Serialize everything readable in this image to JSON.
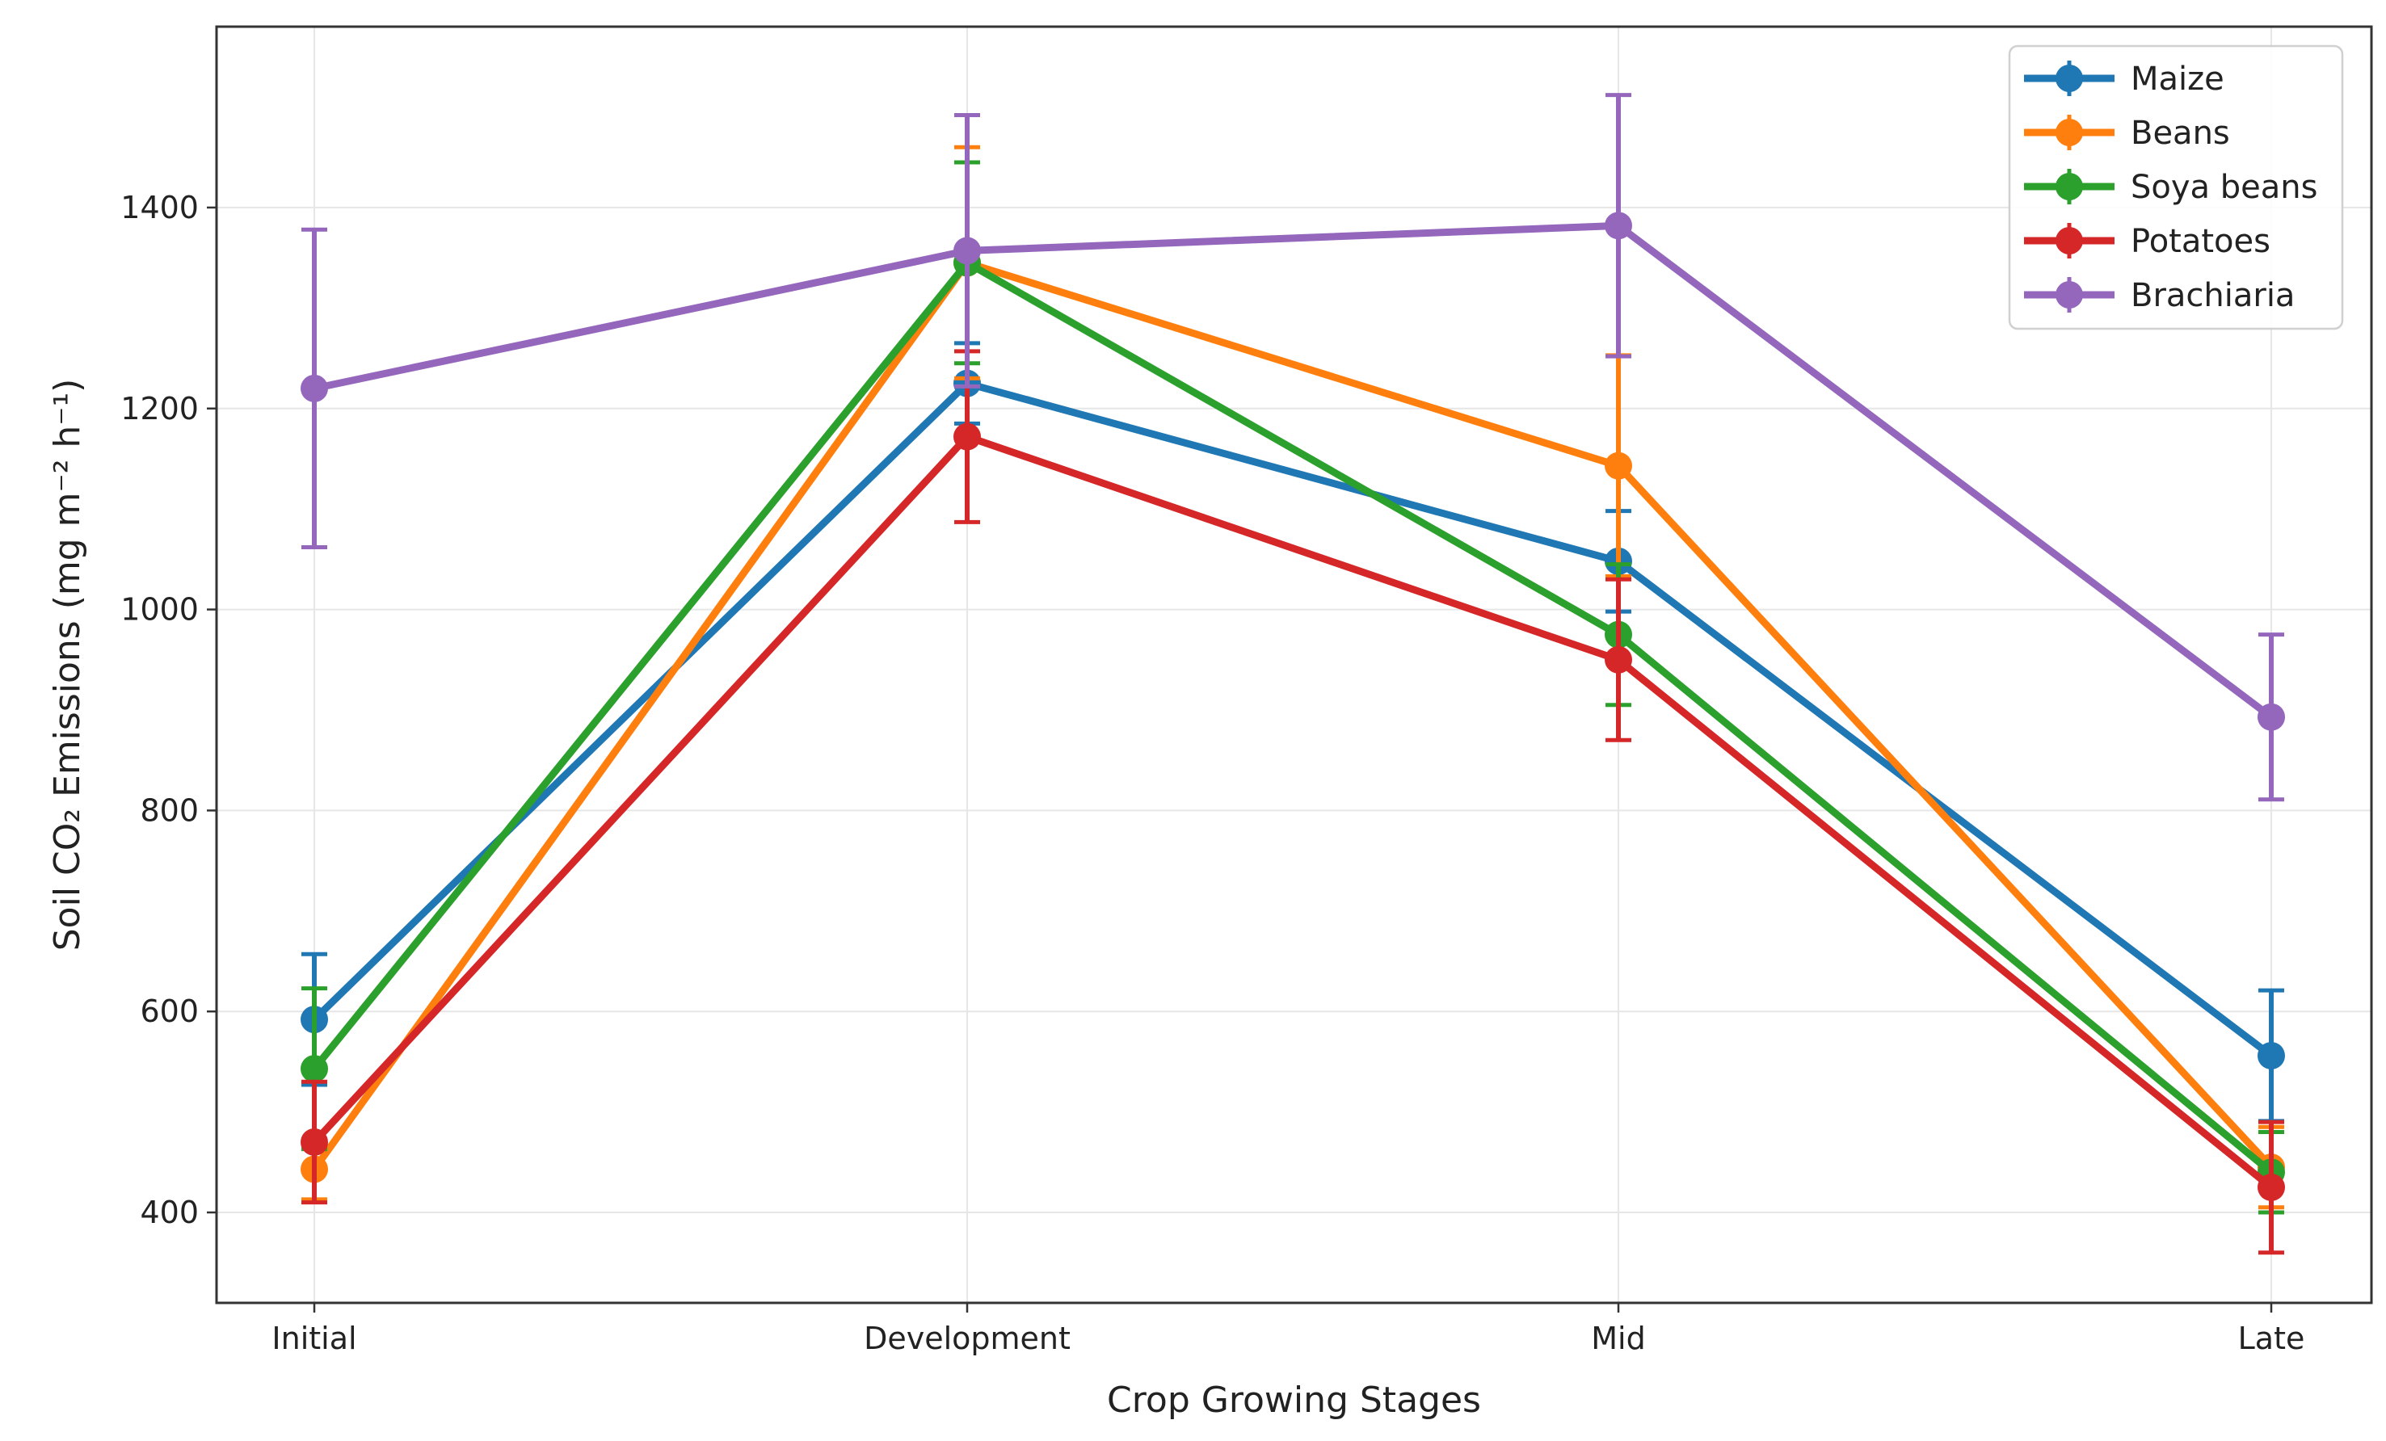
{
  "chart_data": {
    "type": "line",
    "title": "",
    "xlabel": "Crop Growing Stages",
    "ylabel": "Soil CO₂ Emissions (mg m⁻² h⁻¹)",
    "categories": [
      "Initial",
      "Development",
      "Mid",
      "Late"
    ],
    "ylim": [
      310,
      1580
    ],
    "yticks": [
      400,
      600,
      800,
      1000,
      1200,
      1400
    ],
    "grid": true,
    "legend_position": "top-right",
    "series": [
      {
        "name": "Maize",
        "color": "#1f77b4",
        "values": [
          592,
          1225,
          1048,
          556
        ],
        "errors": [
          65,
          40,
          50,
          65
        ]
      },
      {
        "name": "Beans",
        "color": "#ff7f0e",
        "values": [
          443,
          1345,
          1143,
          445
        ],
        "errors": [
          30,
          115,
          110,
          40
        ]
      },
      {
        "name": "Soya beans",
        "color": "#2ca02c",
        "values": [
          543,
          1345,
          975,
          440
        ],
        "errors": [
          80,
          100,
          70,
          40
        ]
      },
      {
        "name": "Potatoes",
        "color": "#d62728",
        "values": [
          470,
          1172,
          950,
          425
        ],
        "errors": [
          60,
          85,
          80,
          65
        ]
      },
      {
        "name": "Brachiaria",
        "color": "#9467bd",
        "values": [
          1220,
          1357,
          1382,
          893
        ],
        "errors": [
          158,
          135,
          130,
          82
        ]
      }
    ]
  }
}
